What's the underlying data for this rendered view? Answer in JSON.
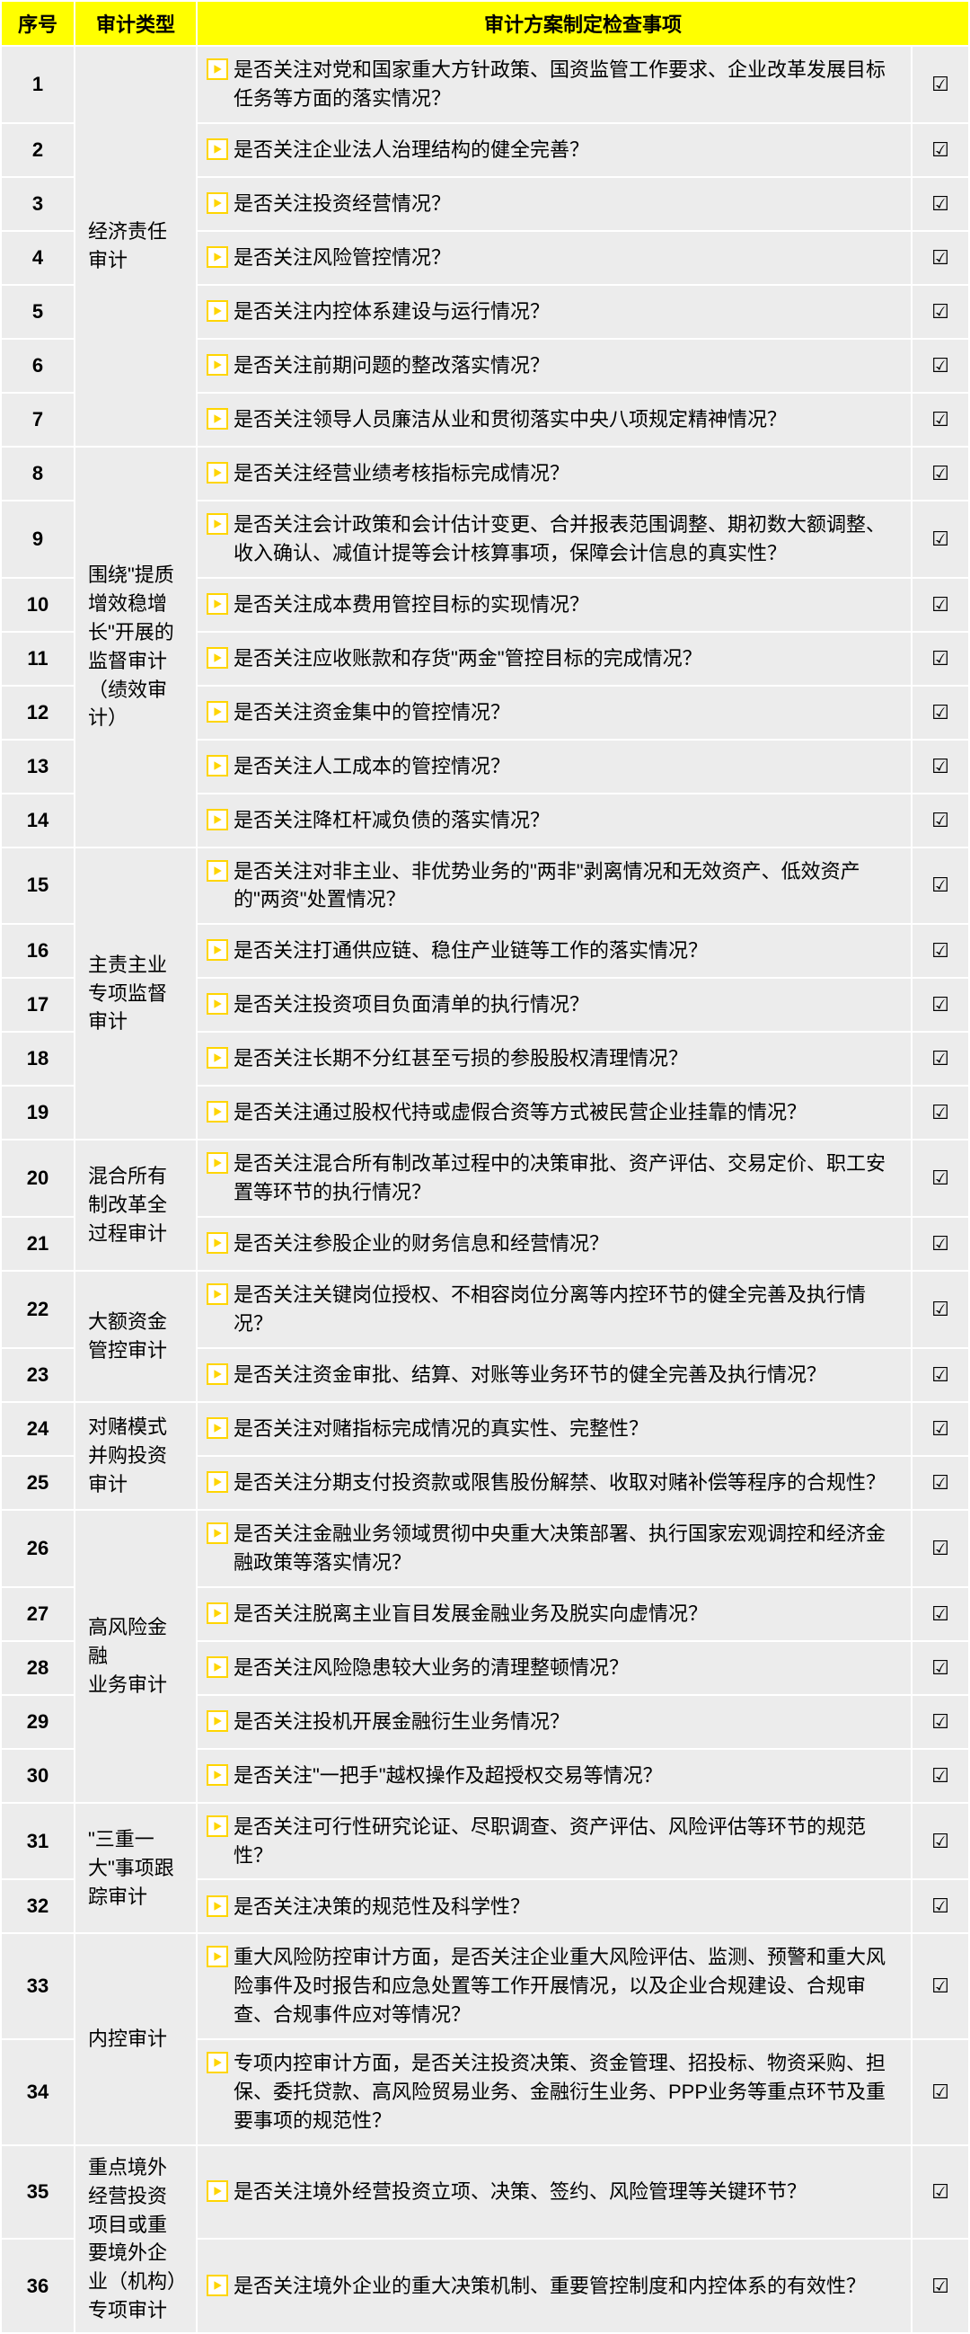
{
  "colors": {
    "header_bg": "#ffff00",
    "cell_bg": "#ececec",
    "border": "#ffffff",
    "bullet_border": "#ffd500",
    "bullet_fill": "#ffd500",
    "text": "#000000"
  },
  "fonts": {
    "header_size_pt": 16,
    "cell_size_pt": 16
  },
  "check_mark": "☑",
  "headers": {
    "seq": "序号",
    "type": "审计类型",
    "item": "审计方案制定检查事项"
  },
  "groups": [
    {
      "type_label": "经济责任审计",
      "rows": [
        {
          "seq": "1",
          "text": "是否关注对党和国家重大方针政策、国资监管工作要求、企业改革发展目标任务等方面的落实情况？",
          "checked": true
        },
        {
          "seq": "2",
          "text": "是否关注企业法人治理结构的健全完善？",
          "checked": true
        },
        {
          "seq": "3",
          "text": "是否关注投资经营情况？",
          "checked": true
        },
        {
          "seq": "4",
          "text": "是否关注风险管控情况？",
          "checked": true
        },
        {
          "seq": "5",
          "text": "是否关注内控体系建设与运行情况？",
          "checked": true
        },
        {
          "seq": "6",
          "text": "是否关注前期问题的整改落实情况？",
          "checked": true
        },
        {
          "seq": "7",
          "text": "是否关注领导人员廉洁从业和贯彻落实中央八项规定精神情况？",
          "checked": true
        }
      ]
    },
    {
      "type_label": "围绕\"提质增效稳增长\"开展的监督审计（绩效审计）",
      "rows": [
        {
          "seq": "8",
          "text": "是否关注经营业绩考核指标完成情况？",
          "checked": true
        },
        {
          "seq": "9",
          "text": "是否关注会计政策和会计估计变更、合并报表范围调整、期初数大额调整、收入确认、减值计提等会计核算事项，保障会计信息的真实性？",
          "checked": true
        },
        {
          "seq": "10",
          "text": "是否关注成本费用管控目标的实现情况？",
          "checked": true
        },
        {
          "seq": "11",
          "text": "是否关注应收账款和存货\"两金\"管控目标的完成情况？",
          "checked": true
        },
        {
          "seq": "12",
          "text": "是否关注资金集中的管控情况？",
          "checked": true
        },
        {
          "seq": "13",
          "text": "是否关注人工成本的管控情况？",
          "checked": true
        },
        {
          "seq": "14",
          "text": "是否关注降杠杆减负债的落实情况？",
          "checked": true
        }
      ]
    },
    {
      "type_label": "主责主业专项监督审计",
      "rows": [
        {
          "seq": "15",
          "text": "是否关注对非主业、非优势业务的\"两非\"剥离情况和无效资产、低效资产的\"两资\"处置情况？",
          "checked": true
        },
        {
          "seq": "16",
          "text": "是否关注打通供应链、稳住产业链等工作的落实情况？",
          "checked": true
        },
        {
          "seq": "17",
          "text": "是否关注投资项目负面清单的执行情况？",
          "checked": true
        },
        {
          "seq": "18",
          "text": "是否关注长期不分红甚至亏损的参股股权清理情况？",
          "checked": true
        },
        {
          "seq": "19",
          "text": "是否关注通过股权代持或虚假合资等方式被民营企业挂靠的情况？",
          "checked": true
        }
      ]
    },
    {
      "type_label": "混合所有制改革全过程审计",
      "rows": [
        {
          "seq": "20",
          "text": "是否关注混合所有制改革过程中的决策审批、资产评估、交易定价、职工安置等环节的执行情况？",
          "checked": true
        },
        {
          "seq": "21",
          "text": "是否关注参股企业的财务信息和经营情况？",
          "checked": true
        }
      ]
    },
    {
      "type_label": "大额资金管控审计",
      "rows": [
        {
          "seq": "22",
          "text": "是否关注关键岗位授权、不相容岗位分离等内控环节的健全完善及执行情况？",
          "checked": true
        },
        {
          "seq": "23",
          "text": "是否关注资金审批、结算、对账等业务环节的健全完善及执行情况？",
          "checked": true
        }
      ]
    },
    {
      "type_label": "对赌模式并购投资审计",
      "rows": [
        {
          "seq": "24",
          "text": "是否关注对赌指标完成情况的真实性、完整性？",
          "checked": true
        },
        {
          "seq": "25",
          "text": "是否关注分期支付投资款或限售股份解禁、收取对赌补偿等程序的合规性？",
          "checked": true
        }
      ]
    },
    {
      "type_label": "高风险金融\n业务审计",
      "rows": [
        {
          "seq": "26",
          "text": "是否关注金融业务领域贯彻中央重大决策部署、执行国家宏观调控和经济金融政策等落实情况？",
          "checked": true
        },
        {
          "seq": "27",
          "text": "是否关注脱离主业盲目发展金融业务及脱实向虚情况？",
          "checked": true
        },
        {
          "seq": "28",
          "text": "是否关注风险隐患较大业务的清理整顿情况？",
          "checked": true
        },
        {
          "seq": "29",
          "text": "是否关注投机开展金融衍生业务情况？",
          "checked": true
        },
        {
          "seq": "30",
          "text": "是否关注\"一把手\"越权操作及超授权交易等情况？",
          "checked": true
        }
      ]
    },
    {
      "type_label": "\"三重一大\"事项跟踪审计",
      "rows": [
        {
          "seq": "31",
          "text": "是否关注可行性研究论证、尽职调查、资产评估、风险评估等环节的规范性？",
          "checked": true
        },
        {
          "seq": "32",
          "text": "是否关注决策的规范性及科学性？",
          "checked": true
        }
      ]
    },
    {
      "type_label": "内控审计",
      "rows": [
        {
          "seq": "33",
          "text": "重大风险防控审计方面，是否关注企业重大风险评估、监测、预警和重大风险事件及时报告和应急处置等工作开展情况，以及企业合规建设、合规审查、合规事件应对等情况？",
          "checked": true
        },
        {
          "seq": "34",
          "text": "专项内控审计方面，是否关注投资决策、资金管理、招投标、物资采购、担保、委托贷款、高风险贸易业务、金融衍生业务、PPP业务等重点环节及重要事项的规范性？",
          "checked": true
        }
      ]
    },
    {
      "type_label": "重点境外经营投资项目或重要境外企业（机构）专项审计",
      "rows": [
        {
          "seq": "35",
          "text": "是否关注境外经营投资立项、决策、签约、风险管理等关键环节？",
          "checked": true
        },
        {
          "seq": "36",
          "text": "是否关注境外企业的重大决策机制、重要管控制度和内控体系的有效性？",
          "checked": true
        }
      ]
    }
  ]
}
